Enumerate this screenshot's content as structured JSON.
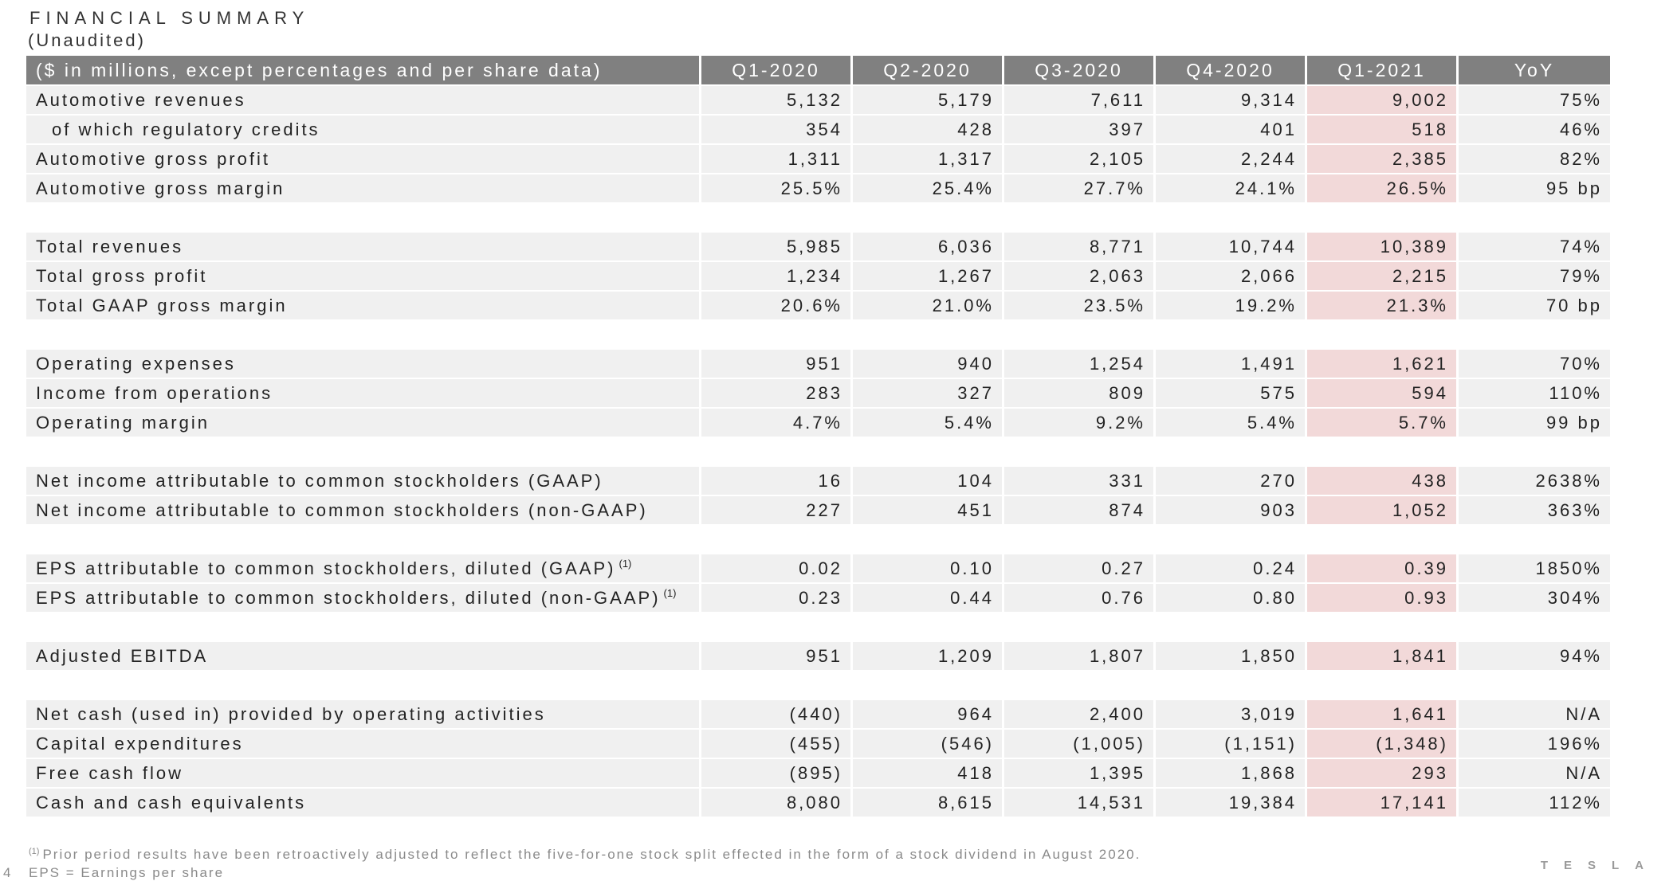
{
  "title": "FINANCIAL SUMMARY",
  "subtitle": "(Unaudited)",
  "header": {
    "label": "($ in millions, except percentages and per share data)",
    "columns": [
      "Q1-2020",
      "Q2-2020",
      "Q3-2020",
      "Q4-2020",
      "Q1-2021",
      "YoY"
    ]
  },
  "highlight_color": "#f2d9d9",
  "header_color": "#808080",
  "rows": [
    {
      "label": "Automotive revenues",
      "values": [
        "5,132",
        "5,179",
        "7,611",
        "9,314",
        "9,002",
        "75%"
      ]
    },
    {
      "label": "of which regulatory credits",
      "indent": true,
      "values": [
        "354",
        "428",
        "397",
        "401",
        "518",
        "46%"
      ]
    },
    {
      "label": "Automotive gross profit",
      "values": [
        "1,311",
        "1,317",
        "2,105",
        "2,244",
        "2,385",
        "82%"
      ]
    },
    {
      "label": "Automotive gross margin",
      "values": [
        "25.5%",
        "25.4%",
        "27.7%",
        "24.1%",
        "26.5%",
        "95 bp"
      ]
    },
    {
      "gap": true
    },
    {
      "label": "Total revenues",
      "values": [
        "5,985",
        "6,036",
        "8,771",
        "10,744",
        "10,389",
        "74%"
      ]
    },
    {
      "label": "Total gross profit",
      "values": [
        "1,234",
        "1,267",
        "2,063",
        "2,066",
        "2,215",
        "79%"
      ]
    },
    {
      "label": "Total GAAP gross margin",
      "values": [
        "20.6%",
        "21.0%",
        "23.5%",
        "19.2%",
        "21.3%",
        "70 bp"
      ]
    },
    {
      "gap": true
    },
    {
      "label": "Operating expenses",
      "values": [
        "951",
        "940",
        "1,254",
        "1,491",
        "1,621",
        "70%"
      ]
    },
    {
      "label": "Income from operations",
      "values": [
        "283",
        "327",
        "809",
        "575",
        "594",
        "110%"
      ]
    },
    {
      "label": "Operating margin",
      "values": [
        "4.7%",
        "5.4%",
        "9.2%",
        "5.4%",
        "5.7%",
        "99 bp"
      ]
    },
    {
      "gap": true
    },
    {
      "label": "Net income attributable to common stockholders (GAAP)",
      "values": [
        "16",
        "104",
        "331",
        "270",
        "438",
        "2638%"
      ]
    },
    {
      "label": "Net income attributable to common stockholders (non-GAAP)",
      "values": [
        "227",
        "451",
        "874",
        "903",
        "1,052",
        "363%"
      ]
    },
    {
      "gap": true
    },
    {
      "label": "EPS attributable to common stockholders, diluted (GAAP)",
      "footnote_mark": "(1)",
      "values": [
        "0.02",
        "0.10",
        "0.27",
        "0.24",
        "0.39",
        "1850%"
      ]
    },
    {
      "label": "EPS attributable to common stockholders, diluted (non-GAAP)",
      "footnote_mark": "(1)",
      "values": [
        "0.23",
        "0.44",
        "0.76",
        "0.80",
        "0.93",
        "304%"
      ]
    },
    {
      "gap": true
    },
    {
      "label": "Adjusted EBITDA",
      "values": [
        "951",
        "1,209",
        "1,807",
        "1,850",
        "1,841",
        "94%"
      ]
    },
    {
      "gap": true
    },
    {
      "label": "Net cash (used in) provided by operating activities",
      "values": [
        "(440)",
        "964",
        "2,400",
        "3,019",
        "1,641",
        "N/A"
      ]
    },
    {
      "label": "Capital expenditures",
      "values": [
        "(455)",
        "(546)",
        "(1,005)",
        "(1,151)",
        "(1,348)",
        "196%"
      ]
    },
    {
      "label": "Free cash flow",
      "values": [
        "(895)",
        "418",
        "1,395",
        "1,868",
        "293",
        "N/A"
      ]
    },
    {
      "label": "Cash and cash equivalents",
      "values": [
        "8,080",
        "8,615",
        "14,531",
        "19,384",
        "17,141",
        "112%"
      ]
    }
  ],
  "footnote": {
    "mark": "(1)",
    "text": "Prior period results have been retroactively adjusted to reflect the five-for-one stock split effected in the form of a stock dividend in August 2020."
  },
  "eps_note": "EPS = Earnings per share",
  "page_number": "4",
  "brand": "TESLA"
}
